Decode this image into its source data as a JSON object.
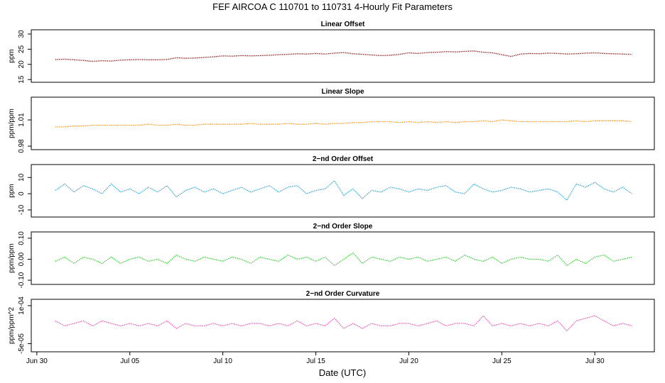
{
  "title": "FEF   AIRCOA C   110701 to 110731   4-Hourly Fit Parameters",
  "xlabel": "Date (UTC)",
  "chart_data": [
    {
      "type": "line",
      "title": "Linear Offset",
      "ylabel": "ppm",
      "color": "#8b0000",
      "x": [
        1,
        1.5,
        2,
        2.5,
        3,
        3.5,
        4,
        4.5,
        5,
        5.5,
        6,
        6.5,
        7,
        7.5,
        8,
        8.5,
        9,
        9.5,
        10,
        10.5,
        11,
        11.5,
        12,
        12.5,
        13,
        13.5,
        14,
        14.5,
        15,
        15.5,
        16,
        16.5,
        17,
        17.5,
        18,
        18.5,
        19,
        19.5,
        20,
        20.5,
        21,
        21.5,
        22,
        22.5,
        23,
        23.5,
        24,
        24.5,
        25,
        25.5,
        26,
        26.5,
        27,
        27.5,
        28,
        28.5,
        29,
        29.5,
        30,
        30.5,
        31,
        31.5,
        32
      ],
      "values": [
        21.6,
        21.7,
        21.5,
        21.3,
        21.0,
        21.2,
        21.1,
        21.4,
        21.5,
        21.6,
        21.5,
        21.5,
        21.6,
        22.2,
        22.0,
        22.1,
        22.3,
        22.5,
        22.8,
        22.7,
        22.9,
        22.8,
        22.9,
        23.0,
        23.2,
        23.3,
        23.5,
        23.4,
        23.6,
        23.4,
        23.7,
        23.9,
        23.5,
        23.3,
        23.1,
        22.9,
        23.0,
        23.3,
        23.8,
        23.6,
        23.9,
        24.0,
        24.2,
        24.1,
        24.3,
        24.4,
        24.0,
        23.8,
        23.2,
        22.6,
        23.4,
        23.6,
        23.5,
        23.7,
        23.6,
        23.4,
        23.5,
        23.7,
        23.8,
        23.6,
        23.5,
        23.4,
        23.3
      ],
      "xlim": [
        -0.3,
        33.2
      ],
      "ylim": [
        14.1,
        31.4
      ],
      "yticks": [
        15,
        20,
        25,
        30
      ]
    },
    {
      "type": "line",
      "title": "Linear Slope",
      "ylabel": "ppm/ppm",
      "color": "#ff8c00",
      "x": [
        1,
        1.5,
        2,
        2.5,
        3,
        3.5,
        4,
        4.5,
        5,
        5.5,
        6,
        6.5,
        7,
        7.5,
        8,
        8.5,
        9,
        9.5,
        10,
        10.5,
        11,
        11.5,
        12,
        12.5,
        13,
        13.5,
        14,
        14.5,
        15,
        15.5,
        16,
        16.5,
        17,
        17.5,
        18,
        18.5,
        19,
        19.5,
        20,
        20.5,
        21,
        21.5,
        22,
        22.5,
        23,
        23.5,
        24,
        24.5,
        25,
        25.5,
        26,
        26.5,
        27,
        27.5,
        28,
        28.5,
        29,
        29.5,
        30,
        30.5,
        31,
        31.5,
        32
      ],
      "values": [
        1.002,
        1.002,
        1.003,
        1.003,
        1.004,
        1.004,
        1.004,
        1.004,
        1.004,
        1.004,
        1.005,
        1.004,
        1.004,
        1.005,
        1.004,
        1.004,
        1.005,
        1.005,
        1.005,
        1.005,
        1.005,
        1.006,
        1.005,
        1.005,
        1.005,
        1.006,
        1.005,
        1.005,
        1.006,
        1.005,
        1.006,
        1.006,
        1.007,
        1.007,
        1.008,
        1.008,
        1.008,
        1.007,
        1.008,
        1.007,
        1.008,
        1.007,
        1.008,
        1.007,
        1.008,
        1.008,
        1.009,
        1.008,
        1.01,
        1.009,
        1.008,
        1.008,
        1.008,
        1.008,
        1.008,
        1.008,
        1.009,
        1.008,
        1.009,
        1.009,
        1.009,
        1.009,
        1.008
      ],
      "xlim": [
        -0.3,
        33.2
      ],
      "ylim": [
        0.976,
        1.036
      ],
      "yticks": [
        0.98,
        1.01
      ]
    },
    {
      "type": "line",
      "title": "2−nd Order Offset",
      "ylabel": "ppm",
      "color": "#1e9fd8",
      "x": [
        1,
        1.5,
        2,
        2.5,
        3,
        3.5,
        4,
        4.5,
        5,
        5.5,
        6,
        6.5,
        7,
        7.5,
        8,
        8.5,
        9,
        9.5,
        10,
        10.5,
        11,
        11.5,
        12,
        12.5,
        13,
        13.5,
        14,
        14.5,
        15,
        15.5,
        16,
        16.5,
        17,
        17.5,
        18,
        18.5,
        19,
        19.5,
        20,
        20.5,
        21,
        21.5,
        22,
        22.5,
        23,
        23.5,
        24,
        24.5,
        25,
        25.5,
        26,
        26.5,
        27,
        27.5,
        28,
        28.5,
        29,
        29.5,
        30,
        30.5,
        31,
        31.5,
        32
      ],
      "values": [
        2,
        6,
        1,
        5,
        3,
        0,
        6,
        1,
        3,
        0,
        4,
        1,
        5,
        -2,
        2,
        4,
        1,
        3,
        0,
        2,
        4,
        1,
        3,
        5,
        1,
        4,
        5,
        0,
        2,
        3,
        8,
        -1,
        3,
        -3,
        2,
        1,
        4,
        3,
        1,
        3,
        2,
        4,
        5,
        1,
        0,
        6,
        3,
        1,
        2,
        4,
        3,
        1,
        2,
        3,
        1,
        -4,
        6,
        4,
        7,
        3,
        1,
        4,
        0
      ],
      "xlim": [
        -0.3,
        33.2
      ],
      "ylim": [
        -14.4,
        18
      ],
      "yticks": [
        -10,
        0,
        10
      ]
    },
    {
      "type": "line",
      "title": "2−nd Order Slope",
      "ylabel": "ppm/ppm",
      "color": "#22cc22",
      "x": [
        1,
        1.5,
        2,
        2.5,
        3,
        3.5,
        4,
        4.5,
        5,
        5.5,
        6,
        6.5,
        7,
        7.5,
        8,
        8.5,
        9,
        9.5,
        10,
        10.5,
        11,
        11.5,
        12,
        12.5,
        13,
        13.5,
        14,
        14.5,
        15,
        15.5,
        16,
        16.5,
        17,
        17.5,
        18,
        18.5,
        19,
        19.5,
        20,
        20.5,
        21,
        21.5,
        22,
        22.5,
        23,
        23.5,
        24,
        24.5,
        25,
        25.5,
        26,
        26.5,
        27,
        27.5,
        28,
        28.5,
        29,
        29.5,
        30,
        30.5,
        31,
        31.5,
        32
      ],
      "values": [
        -0.01,
        0.01,
        -0.02,
        0.01,
        0.0,
        -0.02,
        0.01,
        -0.02,
        0.0,
        0.01,
        -0.01,
        0.0,
        -0.02,
        0.02,
        0.0,
        -0.01,
        0.01,
        0.0,
        -0.01,
        0.01,
        0.0,
        -0.02,
        0.01,
        0.0,
        -0.01,
        0.02,
        0.0,
        0.01,
        -0.01,
        0.01,
        -0.03,
        0.0,
        0.03,
        -0.02,
        0.01,
        0.0,
        -0.01,
        0.01,
        0.0,
        0.01,
        -0.01,
        0.0,
        0.01,
        -0.01,
        0.02,
        0.0,
        -0.01,
        0.01,
        -0.02,
        0.0,
        0.01,
        0.0,
        0.0,
        -0.01,
        0.02,
        -0.03,
        0.0,
        -0.02,
        0.01,
        0.02,
        -0.01,
        0.0,
        0.01
      ],
      "xlim": [
        -0.3,
        33.2
      ],
      "ylim": [
        -0.12,
        0.13
      ],
      "yticks": [
        {
          "value": -0.1,
          "label": "-0.10"
        },
        {
          "value": 0,
          "label": "0.00"
        },
        {
          "value": 0.1,
          "label": "0.10"
        }
      ]
    },
    {
      "type": "line",
      "title": "2−nd Order Curvature",
      "ylabel": "ppm/ppm^2",
      "color": "#ee44aa",
      "x": [
        1,
        1.5,
        2,
        2.5,
        3,
        3.5,
        4,
        4.5,
        5,
        5.5,
        6,
        6.5,
        7,
        7.5,
        8,
        8.5,
        9,
        9.5,
        10,
        10.5,
        11,
        11.5,
        12,
        12.5,
        13,
        13.5,
        14,
        14.5,
        15,
        15.5,
        16,
        16.5,
        17,
        17.5,
        18,
        18.5,
        19,
        19.5,
        20,
        20.5,
        21,
        21.5,
        22,
        22.5,
        23,
        23.5,
        24,
        24.5,
        25,
        25.5,
        26,
        26.5,
        27,
        27.5,
        28,
        28.5,
        29,
        29.5,
        30,
        30.5,
        31,
        31.5,
        32
      ],
      "values": [
        4e-05,
        2e-05,
        3e-05,
        4e-05,
        2e-05,
        4e-05,
        3e-05,
        2e-05,
        3e-05,
        2e-05,
        3e-05,
        2e-05,
        4e-05,
        1e-05,
        3e-05,
        2e-05,
        2e-05,
        3e-05,
        2e-05,
        3e-05,
        2e-05,
        3e-05,
        3e-05,
        2e-05,
        3e-05,
        2e-05,
        4e-05,
        2e-05,
        3e-05,
        2e-05,
        5e-05,
        1e-05,
        3e-05,
        1e-05,
        3e-05,
        2e-05,
        2e-05,
        3e-05,
        3e-05,
        2e-05,
        3e-05,
        4e-05,
        2e-05,
        3e-05,
        3e-05,
        2e-05,
        6e-05,
        2e-05,
        3e-05,
        2e-05,
        3e-05,
        2e-05,
        3e-05,
        2e-05,
        4e-05,
        0,
        4e-05,
        5e-05,
        6e-05,
        4e-05,
        2e-05,
        3e-05,
        2e-05
      ],
      "xlim": [
        -0.3,
        33.2
      ],
      "ylim": [
        -8.2e-05,
        0.000125
      ],
      "yticks": [
        {
          "value": -5e-05,
          "label": "-5e-05"
        },
        {
          "value": 0.0001,
          "label": "1e-04"
        }
      ],
      "xticks": [
        {
          "value": 0,
          "label": "Jun 30"
        },
        {
          "value": 5,
          "label": "Jul 05"
        },
        {
          "value": 10,
          "label": "Jul 10"
        },
        {
          "value": 15,
          "label": "Jul 15"
        },
        {
          "value": 20,
          "label": "Jul 20"
        },
        {
          "value": 25,
          "label": "Jul 25"
        },
        {
          "value": 30,
          "label": "Jul 30"
        }
      ]
    }
  ]
}
